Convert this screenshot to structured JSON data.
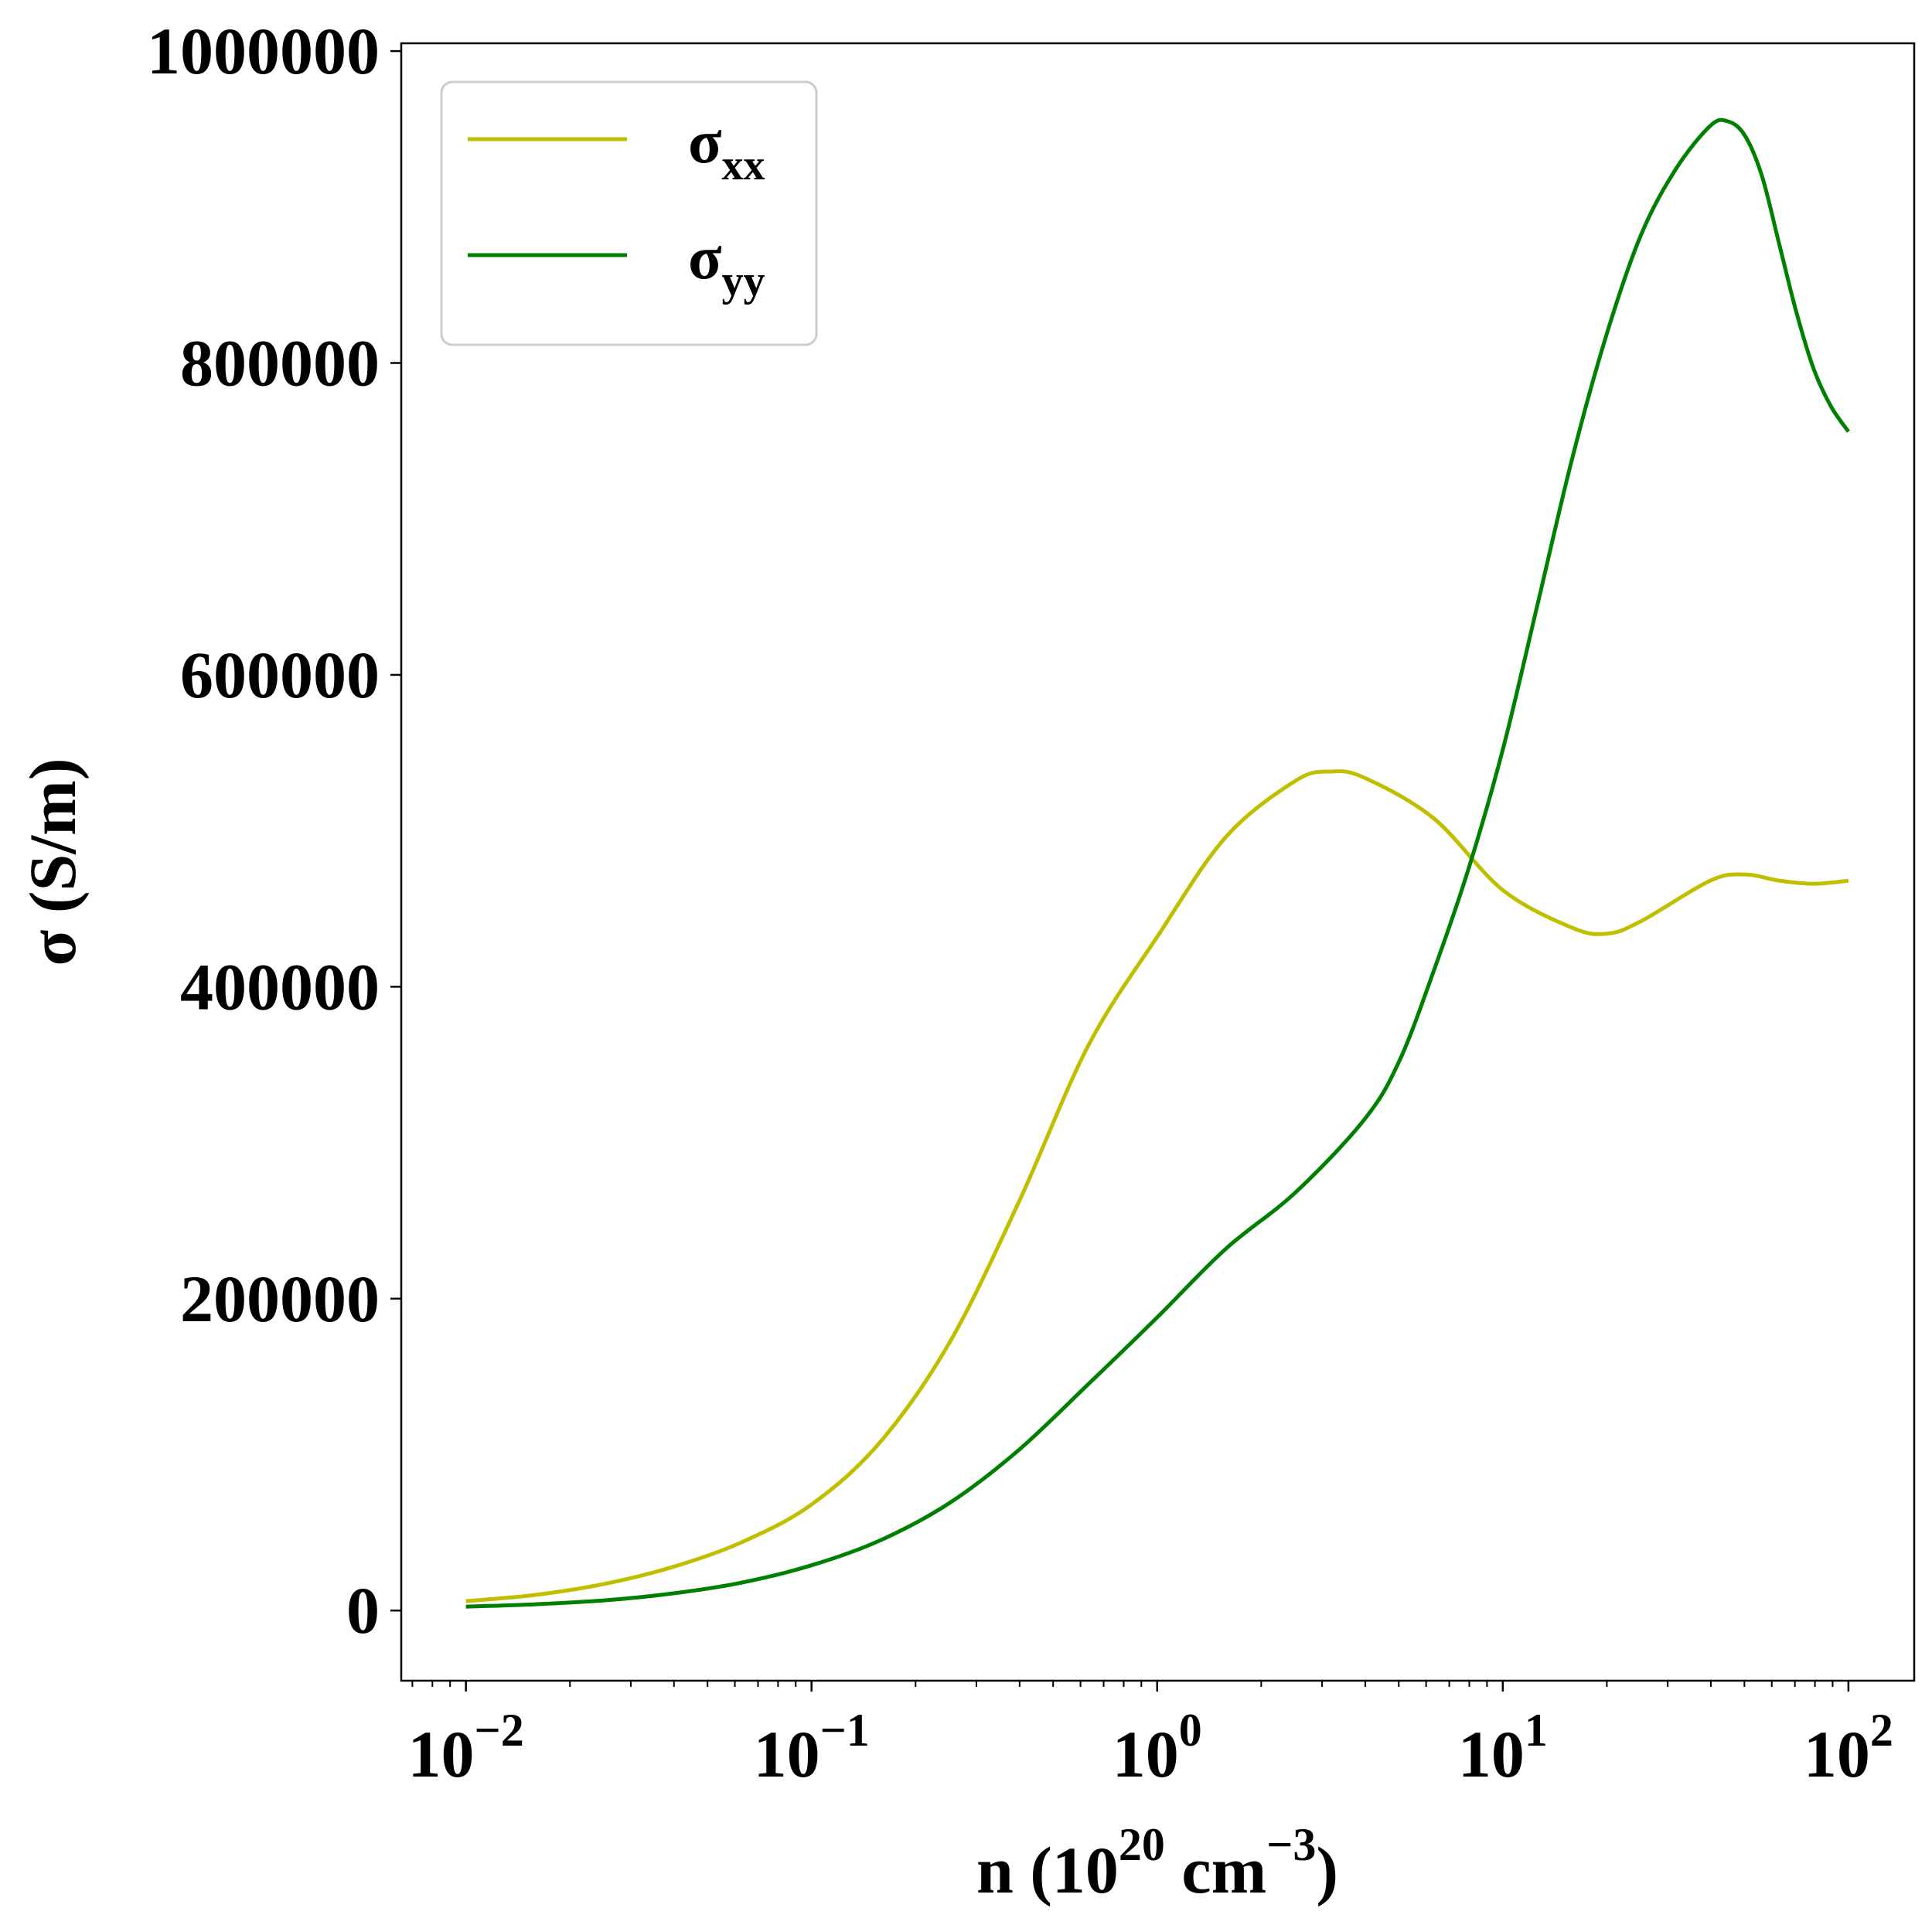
{
  "chart_data": {
    "type": "line",
    "xscale": "log",
    "xlim": [
      0.0065,
      155
    ],
    "ylim": [
      -45000,
      1005000
    ],
    "xlabel": {
      "text": "n (10",
      "sup1": "20",
      "mid": " cm",
      "sup2": "−3",
      "end": ")"
    },
    "ylabel": "σ (S/m)",
    "yticks": [
      {
        "value": 0,
        "label": "0"
      },
      {
        "value": 200000,
        "label": "200000"
      },
      {
        "value": 400000,
        "label": "400000"
      },
      {
        "value": 600000,
        "label": "600000"
      },
      {
        "value": 800000,
        "label": "800000"
      },
      {
        "value": 1000000,
        "label": "1000000"
      }
    ],
    "xticks": [
      {
        "value": 0.01,
        "base": "10",
        "exp": "−2"
      },
      {
        "value": 0.1,
        "base": "10",
        "exp": "−1"
      },
      {
        "value": 1,
        "base": "10",
        "exp": "0"
      },
      {
        "value": 10,
        "base": "10",
        "exp": "1"
      },
      {
        "value": 100,
        "base": "10",
        "exp": "2"
      }
    ],
    "grid": false,
    "legend_position": "top-left",
    "series": [
      {
        "name": {
          "base": "σ",
          "sub": "xx"
        },
        "color": "#bfbf00",
        "x": [
          0.01,
          0.0158,
          0.0251,
          0.0398,
          0.0631,
          0.1,
          0.158,
          0.251,
          0.398,
          0.631,
          1.0,
          1.58,
          2.51,
          3.16,
          3.98,
          6.31,
          10.0,
          15.8,
          20.0,
          25.1,
          39.8,
          50.1,
          63.1,
          79.4,
          100
        ],
        "y": [
          6000,
          10000,
          17000,
          28000,
          44000,
          68000,
          108000,
          172000,
          262000,
          362000,
          432000,
          496000,
          532000,
          538000,
          534000,
          508000,
          462000,
          438000,
          434000,
          442000,
          468000,
          472000,
          468000,
          466000,
          468000
        ]
      },
      {
        "name": {
          "base": "σ",
          "sub": "yy"
        },
        "color": "#008000",
        "x": [
          0.01,
          0.0158,
          0.0251,
          0.0398,
          0.0631,
          0.1,
          0.158,
          0.251,
          0.398,
          0.631,
          1.0,
          1.58,
          2.51,
          3.98,
          5.01,
          6.31,
          7.94,
          10.0,
          12.6,
          15.8,
          19.95,
          25.1,
          31.6,
          39.8,
          44.7,
          50.1,
          56.2,
          63.1,
          70.8,
          79.4,
          89.1,
          100
        ],
        "y": [
          2500,
          4000,
          6500,
          11000,
          18000,
          29000,
          45000,
          69000,
          103000,
          145000,
          188000,
          232000,
          268000,
          315000,
          352000,
          410000,
          475000,
          552000,
          645000,
          737000,
          818000,
          882000,
          924000,
          952000,
          955000,
          946000,
          920000,
          876000,
          832000,
          796000,
          772000,
          756000
        ]
      }
    ]
  }
}
